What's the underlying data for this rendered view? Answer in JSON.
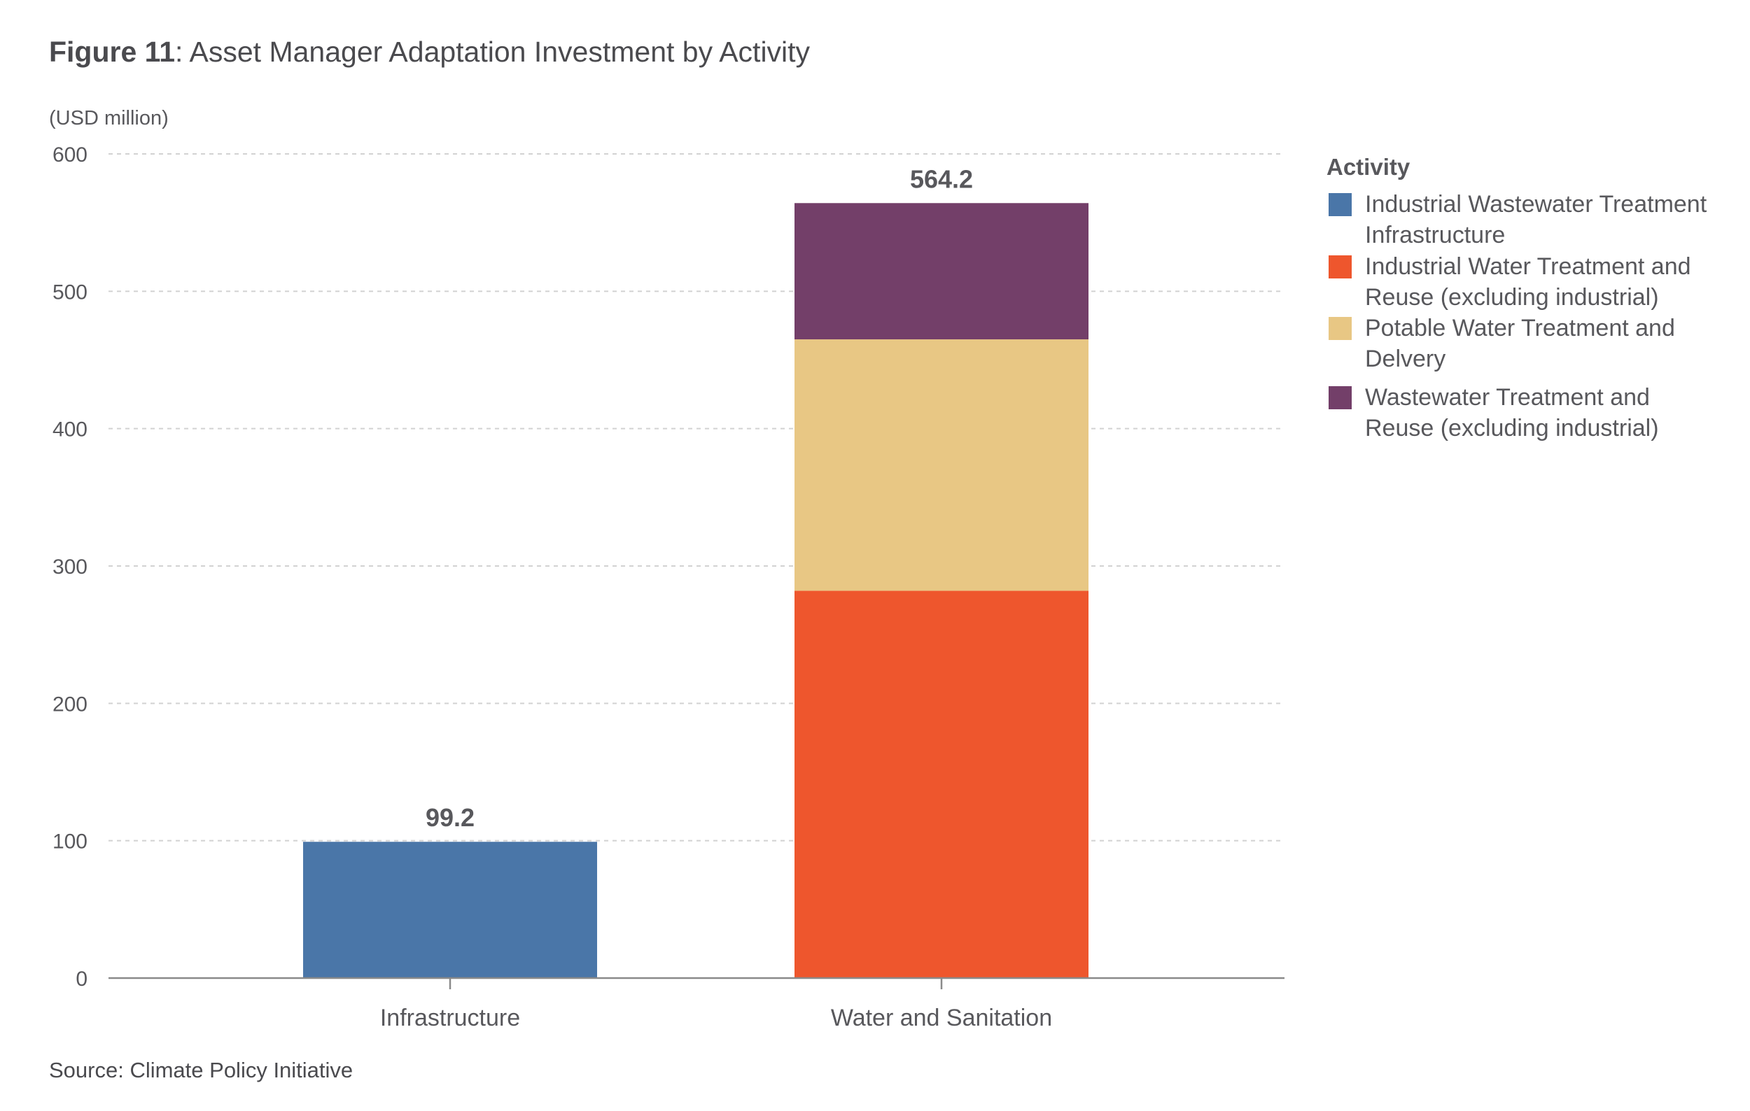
{
  "figure": {
    "label": "Figure 11",
    "title": ": Asset Manager Adaptation Investment by Activity"
  },
  "source": "Source: Climate Policy Initiative",
  "chart_data": {
    "type": "bar",
    "stacked": true,
    "title": "Figure 11: Asset Manager Adaptation Investment by Activity",
    "ylabel": "(USD million)",
    "xlabel": "",
    "ylim": [
      0,
      600
    ],
    "yticks": [
      0,
      100,
      200,
      300,
      400,
      500,
      600
    ],
    "grid": true,
    "categories": [
      "Infrastructure",
      "Water and Sanitation"
    ],
    "totals": [
      99.2,
      564.2
    ],
    "total_labels": [
      "99.2",
      "564.2"
    ],
    "legend": {
      "title": "Activity",
      "position": "right"
    },
    "series": [
      {
        "name": "Industrial Wastewater Treatment Infrastructure",
        "legend_lines": [
          "Industrial Wastewater Treatment",
          "Infrastructure"
        ],
        "color": "#4a76a8",
        "values": [
          99.2,
          0
        ]
      },
      {
        "name": "Industrial Water Treatment and Reuse (excluding industrial)",
        "legend_lines": [
          "Industrial Water Treatment and",
          "Reuse (excluding industrial)"
        ],
        "color": "#ee562d",
        "values": [
          0,
          282
        ]
      },
      {
        "name": "Potable Water Treatment and Delvery",
        "legend_lines": [
          "Potable Water Treatment and",
          "Delvery"
        ],
        "color": "#e8c784",
        "values": [
          0,
          183
        ]
      },
      {
        "name": "Wastewater Treatment and Reuse (excluding industrial)",
        "legend_lines": [
          "Wastewater Treatment and",
          "Reuse (excluding industrial)"
        ],
        "color": "#733f69",
        "values": [
          0,
          99.2
        ]
      }
    ]
  }
}
